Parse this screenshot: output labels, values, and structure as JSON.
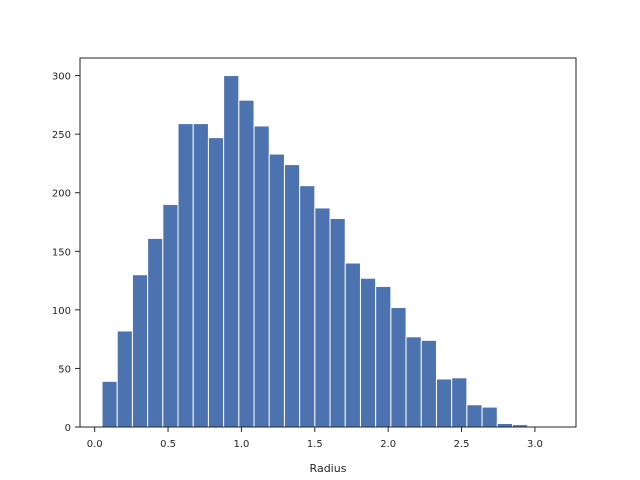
{
  "chart_data": {
    "type": "bar",
    "histogram": true,
    "title": "",
    "xlabel": "Radius",
    "ylabel": "",
    "xlim": [
      -0.1,
      3.28
    ],
    "ylim": [
      0,
      315
    ],
    "grid": false,
    "bar_color": "#4c72b0",
    "edge_color": "#ffffff",
    "bin_start": 0.05,
    "bin_width": 0.1036,
    "values": [
      39,
      82,
      130,
      161,
      190,
      259,
      259,
      247,
      300,
      279,
      257,
      233,
      224,
      206,
      187,
      178,
      140,
      127,
      120,
      102,
      77,
      74,
      41,
      42,
      19,
      17,
      3,
      2
    ],
    "x_ticks": [
      {
        "value": 0.0,
        "label": "0.0"
      },
      {
        "value": 0.5,
        "label": "0.5"
      },
      {
        "value": 1.0,
        "label": "1.0"
      },
      {
        "value": 1.5,
        "label": "1.5"
      },
      {
        "value": 2.0,
        "label": "2.0"
      },
      {
        "value": 2.5,
        "label": "2.5"
      },
      {
        "value": 3.0,
        "label": "3.0"
      }
    ],
    "y_ticks": [
      {
        "value": 0,
        "label": "0"
      },
      {
        "value": 50,
        "label": "50"
      },
      {
        "value": 100,
        "label": "100"
      },
      {
        "value": 150,
        "label": "150"
      },
      {
        "value": 200,
        "label": "200"
      },
      {
        "value": 250,
        "label": "250"
      },
      {
        "value": 300,
        "label": "300"
      }
    ]
  }
}
